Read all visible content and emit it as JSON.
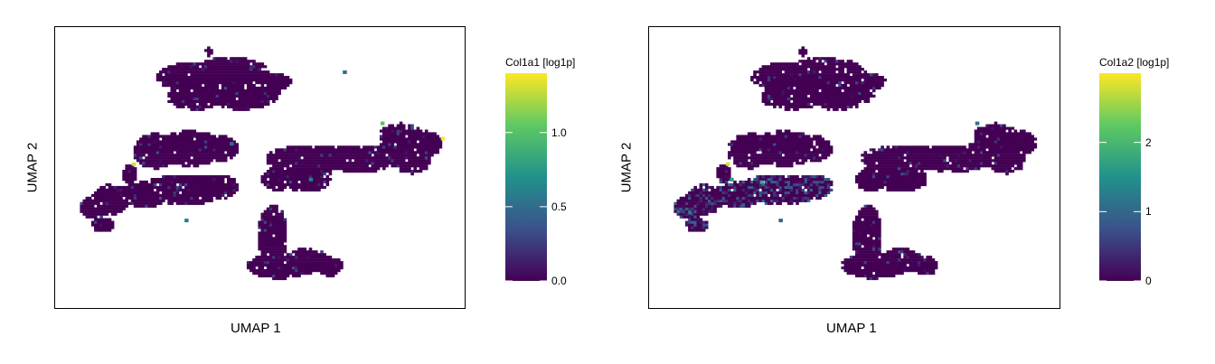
{
  "chart_data": [
    {
      "type": "scatter",
      "subtype": "umap-hexbin",
      "xlabel": "UMAP 1",
      "ylabel": "UMAP 2",
      "colorbar": {
        "title": "Col1a1 [log1p]",
        "range": [
          0,
          1.4
        ],
        "ticks": [
          0.0,
          0.5,
          1.0
        ],
        "tick_labels": [
          "0.0",
          "0.5",
          "1.0"
        ],
        "colormap": [
          "#440154",
          "#3b528b",
          "#21918c",
          "#5ec962",
          "#fde725"
        ]
      },
      "highlight_points": [
        {
          "x": 0.16,
          "y": 0.52,
          "value": 1.3
        },
        {
          "x": 0.82,
          "y": 0.68,
          "value": 1.0
        },
        {
          "x": 0.98,
          "y": 0.62,
          "value": 1.4
        },
        {
          "x": 0.63,
          "y": 0.46,
          "value": 0.6
        },
        {
          "x": 0.42,
          "y": 0.6,
          "value": 0.5
        },
        {
          "x": 0.3,
          "y": 0.3,
          "value": 0.6
        },
        {
          "x": 0.72,
          "y": 0.88,
          "value": 0.5
        }
      ]
    },
    {
      "type": "scatter",
      "subtype": "umap-hexbin",
      "xlabel": "UMAP 1",
      "ylabel": "UMAP 2",
      "colorbar": {
        "title": "Col1a2 [log1p]",
        "range": [
          0,
          3
        ],
        "ticks": [
          0,
          1,
          2
        ],
        "tick_labels": [
          "0",
          "1",
          "2"
        ],
        "colormap": [
          "#440154",
          "#3b528b",
          "#21918c",
          "#5ec962",
          "#fde725"
        ]
      },
      "highlight_points": [
        {
          "x": 0.16,
          "y": 0.52,
          "value": 2.8
        },
        {
          "x": 0.17,
          "y": 0.46,
          "value": 1.6
        },
        {
          "x": 0.06,
          "y": 0.33,
          "value": 1.2
        },
        {
          "x": 0.25,
          "y": 0.45,
          "value": 1.8
        },
        {
          "x": 0.3,
          "y": 0.3,
          "value": 1.0
        },
        {
          "x": 0.82,
          "y": 0.68,
          "value": 1.1
        },
        {
          "x": 0.2,
          "y": 0.36,
          "value": 0.9
        }
      ]
    }
  ]
}
